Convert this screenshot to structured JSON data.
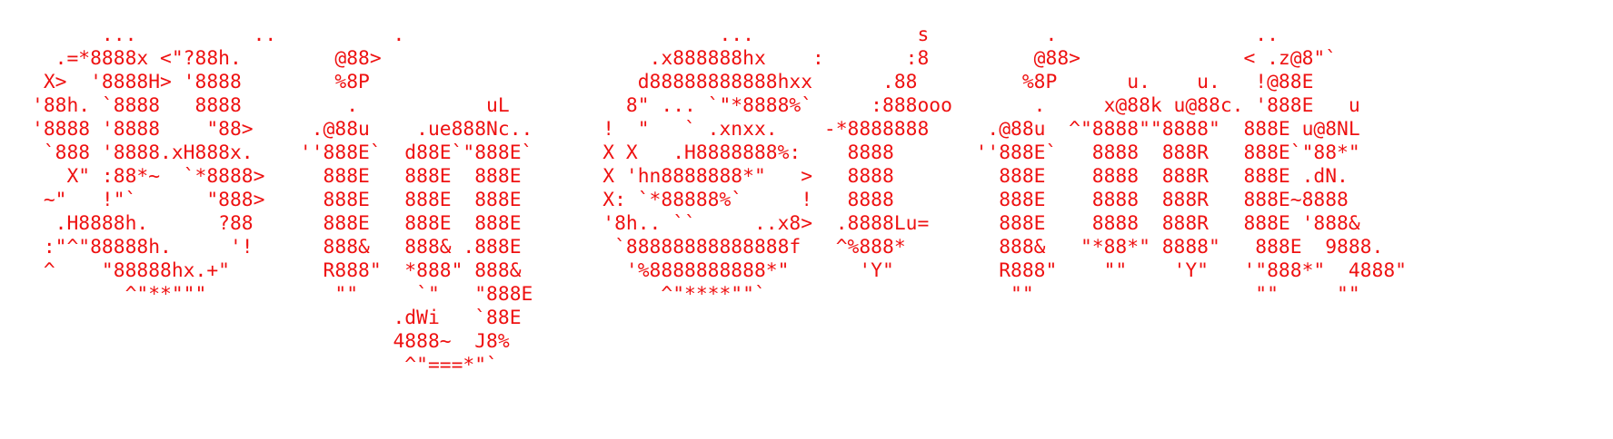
{
  "art": {
    "text_color": "#ee1111",
    "background": "#ffffff",
    "lines": [
      "      ...          ..          .                           ...              s          .                 ..",
      "  .=*8888x <\"?88h.        @88>                       .x888888hx    :       :8         @88>              < .z@8\"`",
      " X>  '8888H> '8888        %8P                       d88888888888hxx      .88         %8P      u.    u.   !@88E",
      "'88h. `8888   8888         .           uL          8\" ... `\"*8888%`     :888ooo       .     x@88k u@88c. '888E   u",
      "'8888 '8888    \"88>     .@88u    .ue888Nc..      !  \"   ` .xnxx.    -*8888888     .@88u  ^\"8888\"\"8888\"  888E u@8NL",
      " `888 '8888.xH888x.    ''888E`  d88E`\"888E`      X X   .H8888888%:    8888       ''888E`   8888  888R   888E`\"88*\"",
      "   X\" :88*~  `*8888>     888E   888E  888E       X 'hn8888888*\"   >   8888         888E    8888  888R   888E .dN.",
      " ~\"   !\"`      \"888>     888E   888E  888E       X: `*88888%`     !   8888         888E    8888  888R   888E~8888",
      "  .H8888h.      ?88      888E   888E  888E       '8h.. ``     ..x8>  .8888Lu=      888E    8888  888R   888E '888&",
      " :\"^\"88888h.     '!      888&   888& .888E        `88888888888888f   ^%888*        888&   \"*88*\" 8888\"   888E  9888.",
      " ^    \"88888hx.+\"        R888\"  *888\" 888&         '%8888888888*\"      'Y\"         R888\"    \"\"    'Y\"   '\"888*\"  4888\"",
      "        ^\"**\"\"\"           \"\"     `\"   \"888E           ^\"****\"\"`                     \"\"                   \"\"     \"\"",
      "                               .dWi   `88E",
      "                               4888~  J8%",
      "                                ^\"===*\"`"
    ]
  }
}
